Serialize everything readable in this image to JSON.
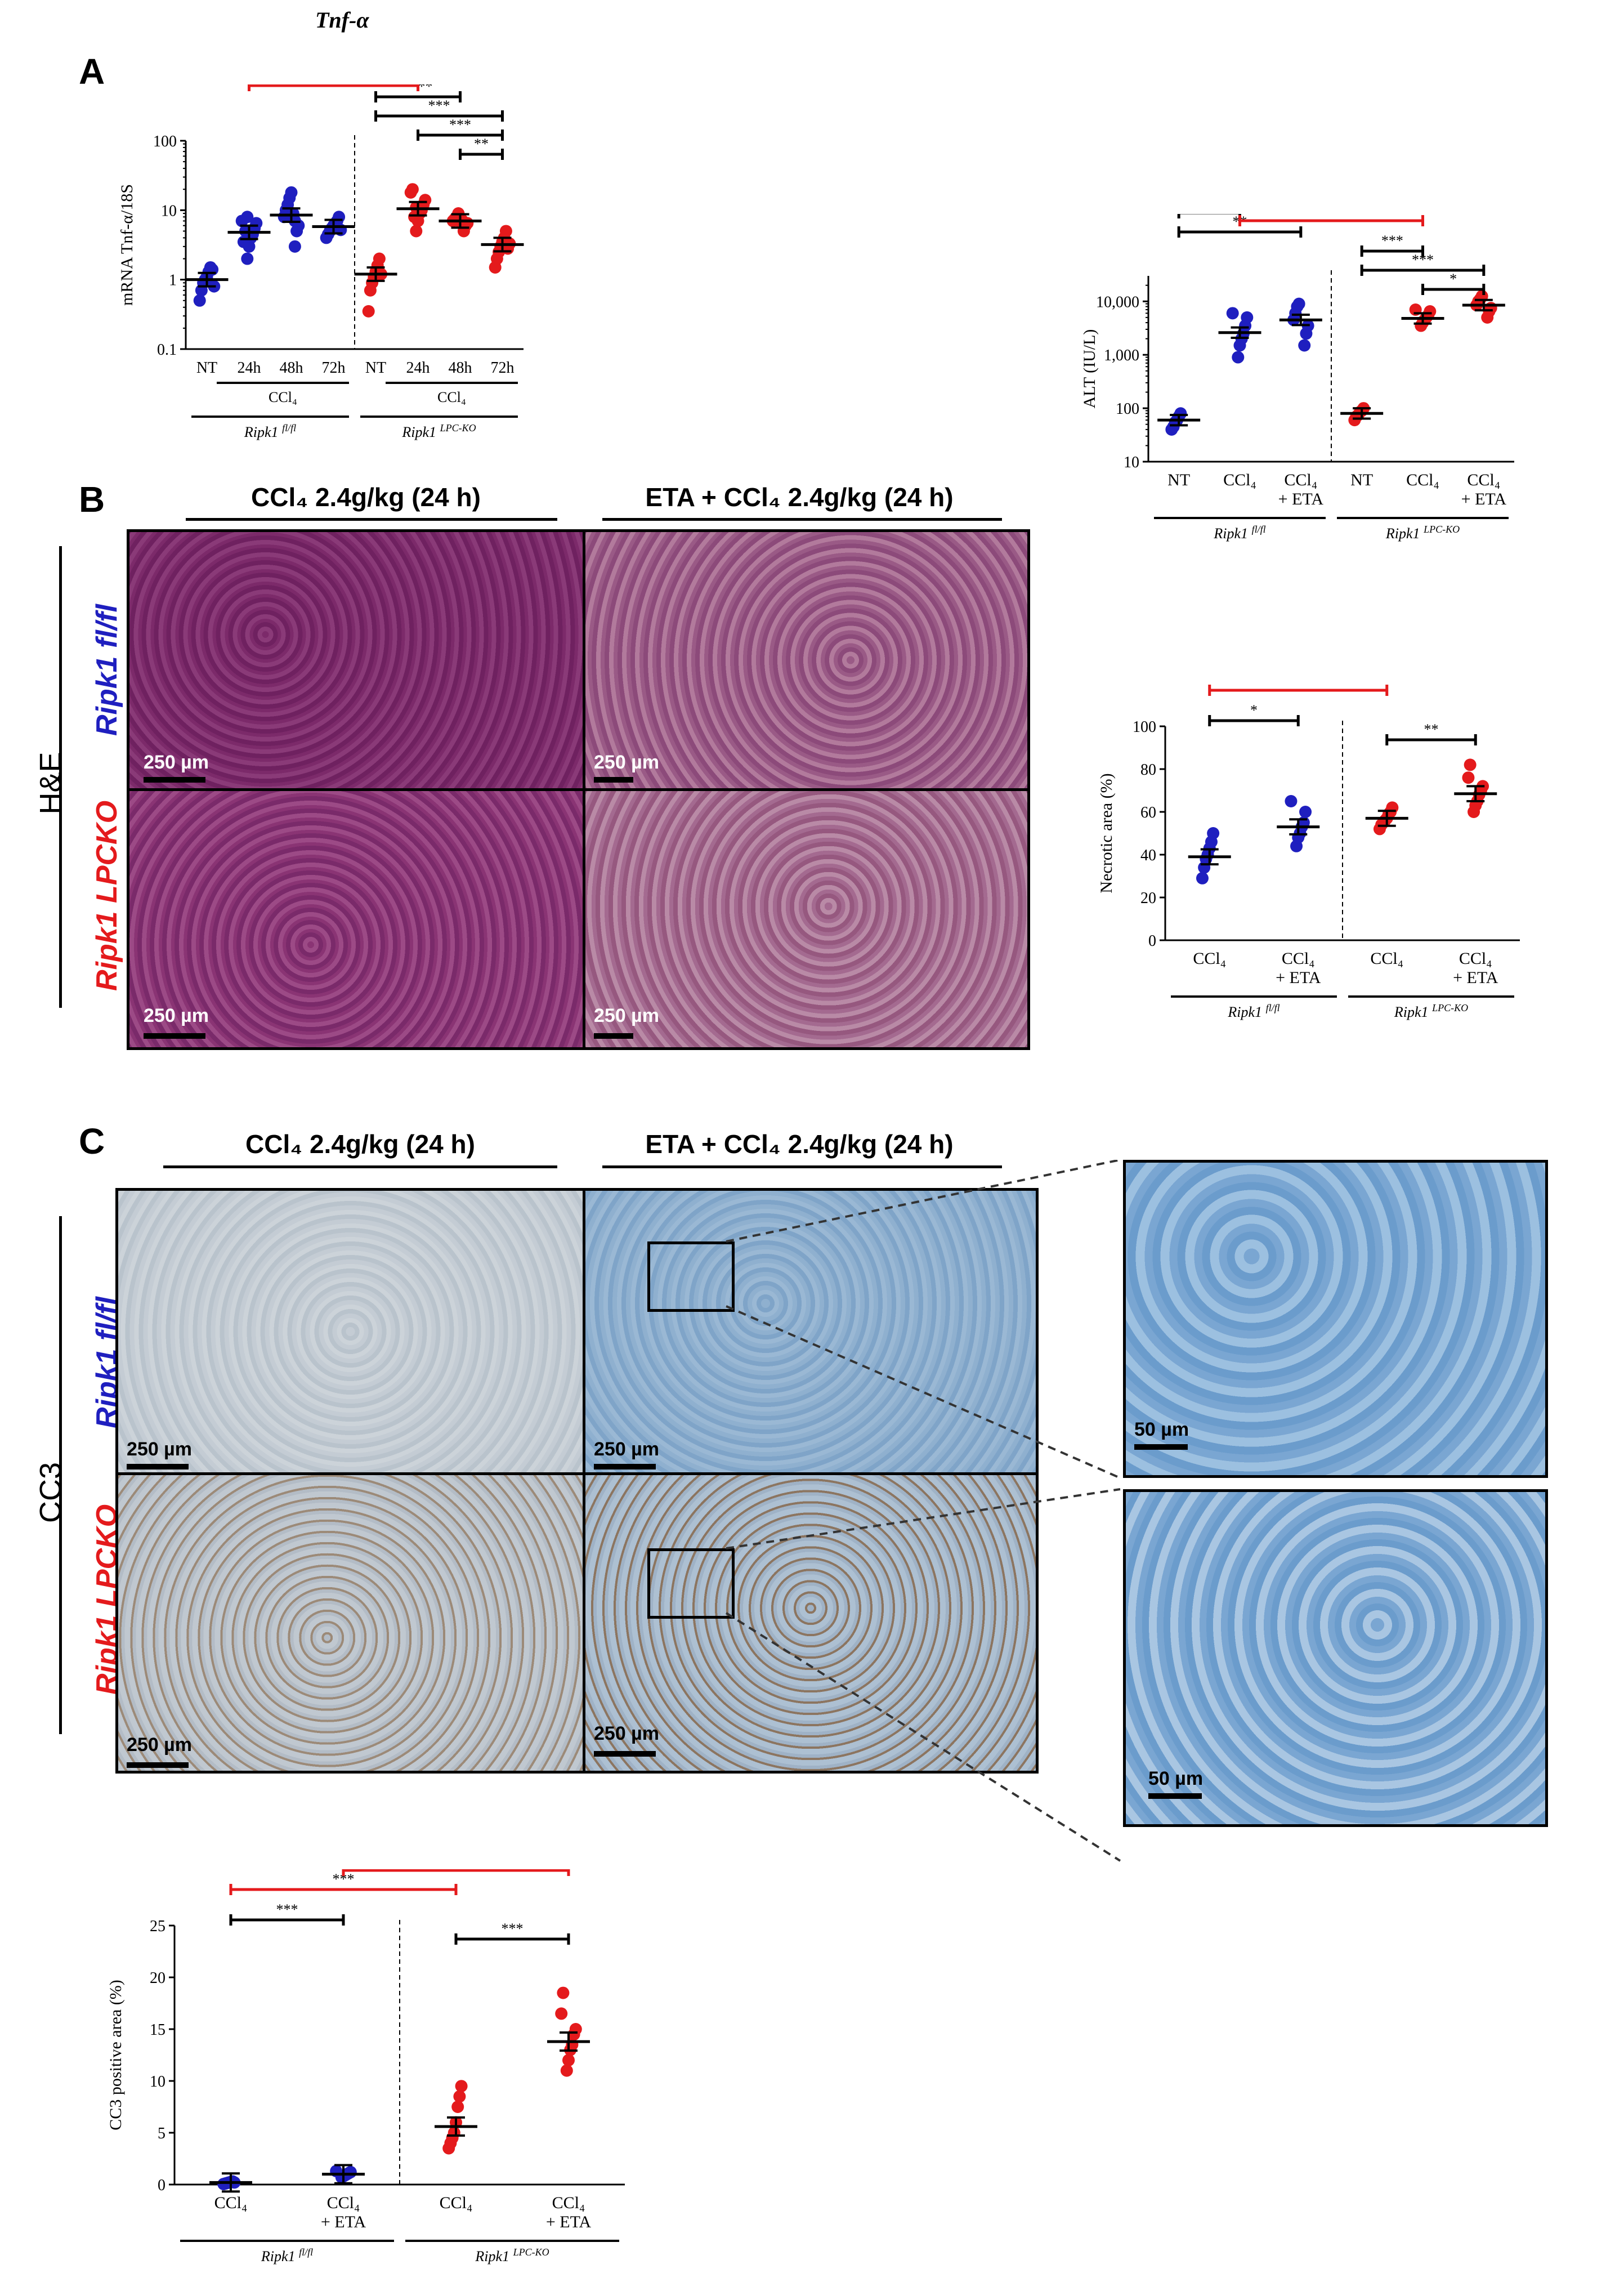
{
  "figure_title": "Tnf-α",
  "panels": {
    "A": {
      "letter": "A"
    },
    "B": {
      "letter": "B",
      "col1": "CCl₄ 2.4g/kg (24 h)",
      "col2": "ETA + CCl₄ 2.4g/kg (24 h)",
      "stain": "H&E",
      "row1": "Ripk1 fl/fl",
      "row2": "Ripk1 LPCKO",
      "scalebar": "250 µm"
    },
    "C": {
      "letter": "C",
      "col1": "CCl₄ 2.4g/kg (24 h)",
      "col2": "ETA + CCl₄ 2.4g/kg (24 h)",
      "stain": "CC3",
      "row1": "Ripk1 fl/fl",
      "row2": "Ripk1 LPCKO",
      "scalebar": "250 µm",
      "zoom_scalebar": "50 µm"
    }
  },
  "colors": {
    "flfl": "#1f1fbf",
    "lpcko": "#e41a1c",
    "bracket_black": "#000000",
    "bracket_red": "#e41a1c"
  },
  "chart_data": [
    {
      "id": "tnf",
      "type": "scatter",
      "ylabel": "mRNA Tnf-α/18S",
      "yscale": "log",
      "ylim": [
        0.1,
        100
      ],
      "yticks": [
        "0.1",
        "1",
        "10",
        "100"
      ],
      "categories": [
        "NT",
        "24h",
        "48h",
        "72h",
        "NT",
        "24h",
        "48h",
        "72h"
      ],
      "group_labels": [
        {
          "treat": "CCl₄",
          "geno": "Ripk1",
          "sup": "fl/fl"
        },
        {
          "treat": "CCl₄",
          "geno": "Ripk1",
          "sup": "LPC-KO"
        }
      ],
      "series": [
        {
          "group": "fl/fl",
          "color": "#1f1fbf",
          "means": [
            1.0,
            4.8,
            8.5,
            5.8
          ],
          "points": [
            [
              0.5,
              0.7,
              0.9,
              1.0,
              1.1,
              1.3,
              1.5,
              1.4,
              0.8
            ],
            [
              2.0,
              3.0,
              4.0,
              4.5,
              5.5,
              6.5,
              7.0,
              3.5,
              5.0,
              8.0
            ],
            [
              3.0,
              5.0,
              6.0,
              8.0,
              10.0,
              12.0,
              15.0,
              18.0,
              9.0,
              7.0
            ],
            [
              4.0,
              4.5,
              5.0,
              5.5,
              6.0,
              6.5,
              7.0,
              8.0,
              5.2
            ]
          ]
        },
        {
          "group": "LPC-KO",
          "color": "#e41a1c",
          "means": [
            1.2,
            10.5,
            7.0,
            3.2
          ],
          "points": [
            [
              0.35,
              0.7,
              0.9,
              1.1,
              1.3,
              1.6,
              2.0,
              1.2
            ],
            [
              5.0,
              7.0,
              9.0,
              10.0,
              12.0,
              14.0,
              18.0,
              20.0,
              8.0,
              11.0
            ],
            [
              5.0,
              6.0,
              6.5,
              7.0,
              7.5,
              8.0,
              9.0,
              6.8,
              7.2
            ],
            [
              1.5,
              2.0,
              2.5,
              3.0,
              3.5,
              4.0,
              5.0,
              2.8,
              3.3
            ]
          ]
        }
      ],
      "significance": [
        {
          "from": 0,
          "to": 1,
          "label": "***",
          "color": "black"
        },
        {
          "from": 0,
          "to": 2,
          "label": "****",
          "color": "black"
        },
        {
          "from": 0,
          "to": 3,
          "label": "****",
          "color": "black"
        },
        {
          "from": 4,
          "to": 5,
          "label": "****",
          "color": "black"
        },
        {
          "from": 4,
          "to": 6,
          "label": "****",
          "color": "black"
        },
        {
          "from": 4,
          "to": 7,
          "label": "***",
          "color": "black"
        },
        {
          "from": 5,
          "to": 7,
          "label": "***",
          "color": "black"
        },
        {
          "from": 6,
          "to": 7,
          "label": "**",
          "color": "black"
        },
        {
          "from": 1,
          "to": 5,
          "label": "*",
          "color": "red"
        },
        {
          "from": 3,
          "to": 7,
          "label": "**",
          "color": "red"
        }
      ]
    },
    {
      "id": "alt",
      "type": "scatter",
      "ylabel": "ALT (IU/L)",
      "yscale": "log",
      "ylim": [
        10,
        30000
      ],
      "yticks": [
        "10",
        "100",
        "1,000",
        "10,000"
      ],
      "categories": [
        "NT",
        "CCl₄",
        "CCl₄ + ETA",
        "NT",
        "CCl₄",
        "CCl₄ + ETA"
      ],
      "group_labels": [
        {
          "geno": "Ripk1",
          "sup": "fl/fl"
        },
        {
          "geno": "Ripk1",
          "sup": "LPC-KO"
        }
      ],
      "series": [
        {
          "group": "fl/fl",
          "color": "#1f1fbf",
          "means": [
            60,
            2600,
            4500
          ],
          "points": [
            [
              40,
              45,
              55,
              60,
              70,
              80
            ],
            [
              900,
              1500,
              2000,
              2500,
              3500,
              5000,
              6000
            ],
            [
              1500,
              2500,
              3500,
              4500,
              6000,
              8000,
              9000
            ]
          ]
        },
        {
          "group": "LPC-KO",
          "color": "#e41a1c",
          "means": [
            80,
            4800,
            8500
          ],
          "points": [
            [
              60,
              70,
              75,
              85,
              90,
              100
            ],
            [
              3500,
              4000,
              4500,
              5000,
              5500,
              6500,
              7000
            ],
            [
              5000,
              6500,
              7500,
              8500,
              10000,
              11000,
              12500
            ]
          ]
        }
      ],
      "significance": [
        {
          "from": 0,
          "to": 1,
          "label": "**",
          "color": "black"
        },
        {
          "from": 0,
          "to": 2,
          "label": "**",
          "color": "black"
        },
        {
          "from": 3,
          "to": 4,
          "label": "***",
          "color": "black"
        },
        {
          "from": 3,
          "to": 5,
          "label": "***",
          "color": "black"
        },
        {
          "from": 4,
          "to": 5,
          "label": "*",
          "color": "black"
        },
        {
          "from": 1,
          "to": 4,
          "label": "*",
          "color": "red"
        },
        {
          "from": 2,
          "to": 5,
          "label": "*",
          "color": "red"
        }
      ]
    },
    {
      "id": "necrotic",
      "type": "scatter",
      "ylabel": "Necrotic area (%)",
      "yscale": "linear",
      "ylim": [
        0,
        100
      ],
      "yticks": [
        "0",
        "20",
        "40",
        "60",
        "80",
        "100"
      ],
      "categories": [
        "CCl₄",
        "CCl₄ + ETA",
        "CCl₄",
        "CCl₄ + ETA"
      ],
      "group_labels": [
        {
          "geno": "Ripk1",
          "sup": "fl/fl"
        },
        {
          "geno": "Ripk1",
          "sup": "LPC-KO"
        }
      ],
      "series": [
        {
          "group": "fl/fl",
          "color": "#1f1fbf",
          "means": [
            39,
            53
          ],
          "points": [
            [
              29,
              34,
              38,
              40,
              43,
              46,
              50
            ],
            [
              44,
              48,
              50,
              53,
              55,
              60,
              65
            ]
          ]
        },
        {
          "group": "LPC-KO",
          "color": "#e41a1c",
          "means": [
            57,
            68.5
          ],
          "points": [
            [
              52,
              54,
              55,
              56,
              57,
              59,
              60,
              62
            ],
            [
              60,
              63,
              65,
              68,
              70,
              72,
              76,
              82
            ]
          ]
        }
      ],
      "significance": [
        {
          "from": 0,
          "to": 1,
          "label": "*",
          "color": "black"
        },
        {
          "from": 2,
          "to": 3,
          "label": "**",
          "color": "black"
        },
        {
          "from": 0,
          "to": 2,
          "label": "***",
          "color": "red"
        },
        {
          "from": 1,
          "to": 3,
          "label": "**",
          "color": "red"
        }
      ]
    },
    {
      "id": "cc3",
      "type": "scatter",
      "ylabel": "CC3 positive area (%)",
      "yscale": "linear",
      "ylim": [
        0,
        25
      ],
      "yticks": [
        "0",
        "5",
        "10",
        "15",
        "20",
        "25"
      ],
      "categories": [
        "CCl₄",
        "CCl₄ + ETA",
        "CCl₄",
        "CCl₄ + ETA"
      ],
      "group_labels": [
        {
          "geno": "Ripk1",
          "sup": "fl/fl"
        },
        {
          "geno": "Ripk1",
          "sup": "LPC-KO"
        }
      ],
      "series": [
        {
          "group": "fl/fl",
          "color": "#1f1fbf",
          "means": [
            0.2,
            1.0
          ],
          "points": [
            [
              0.05,
              0.1,
              0.15,
              0.2,
              0.25,
              0.3,
              0.2
            ],
            [
              0.7,
              0.8,
              0.9,
              1.0,
              1.1,
              1.2,
              1.3
            ]
          ]
        },
        {
          "group": "LPC-KO",
          "color": "#e41a1c",
          "means": [
            5.6,
            13.8
          ],
          "points": [
            [
              3.5,
              4.0,
              4.5,
              5.0,
              6.0,
              7.5,
              8.5,
              9.5
            ],
            [
              11.0,
              12.0,
              13.0,
              13.5,
              14.5,
              15.0,
              16.5,
              18.5
            ]
          ]
        }
      ],
      "significance": [
        {
          "from": 0,
          "to": 1,
          "label": "***",
          "color": "black"
        },
        {
          "from": 2,
          "to": 3,
          "label": "***",
          "color": "black"
        },
        {
          "from": 0,
          "to": 2,
          "label": "***",
          "color": "red"
        },
        {
          "from": 1,
          "to": 3,
          "label": "***",
          "color": "red"
        }
      ]
    }
  ]
}
